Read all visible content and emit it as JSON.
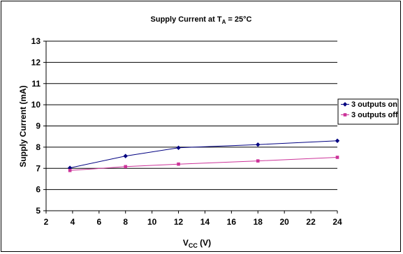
{
  "chart_data": {
    "type": "line",
    "title": {
      "prefix": "Supply Current at T",
      "subscript": "A",
      "suffix": " = 25°C"
    },
    "xlabel": {
      "prefix": "V",
      "subscript": "CC",
      "suffix": " (V)"
    },
    "ylabel": "Supply Current (mA)",
    "xlim": [
      2,
      24
    ],
    "ylim": [
      5,
      13
    ],
    "xticks": [
      2,
      4,
      6,
      8,
      10,
      12,
      14,
      16,
      18,
      20,
      22,
      24
    ],
    "yticks": [
      5,
      6,
      7,
      8,
      9,
      10,
      11,
      12,
      13
    ],
    "grid": "horizontal",
    "legend_position": "right",
    "series": [
      {
        "name": "3 outputs on",
        "color": "#000080",
        "marker": "diamond",
        "x": [
          3.8,
          8,
          12,
          18,
          24
        ],
        "y": [
          7.02,
          7.58,
          7.97,
          8.12,
          8.3
        ]
      },
      {
        "name": "3 outputs off",
        "color": "#cc3399",
        "marker": "square",
        "x": [
          3.8,
          8,
          12,
          18,
          24
        ],
        "y": [
          6.9,
          7.08,
          7.2,
          7.35,
          7.52
        ]
      }
    ]
  }
}
